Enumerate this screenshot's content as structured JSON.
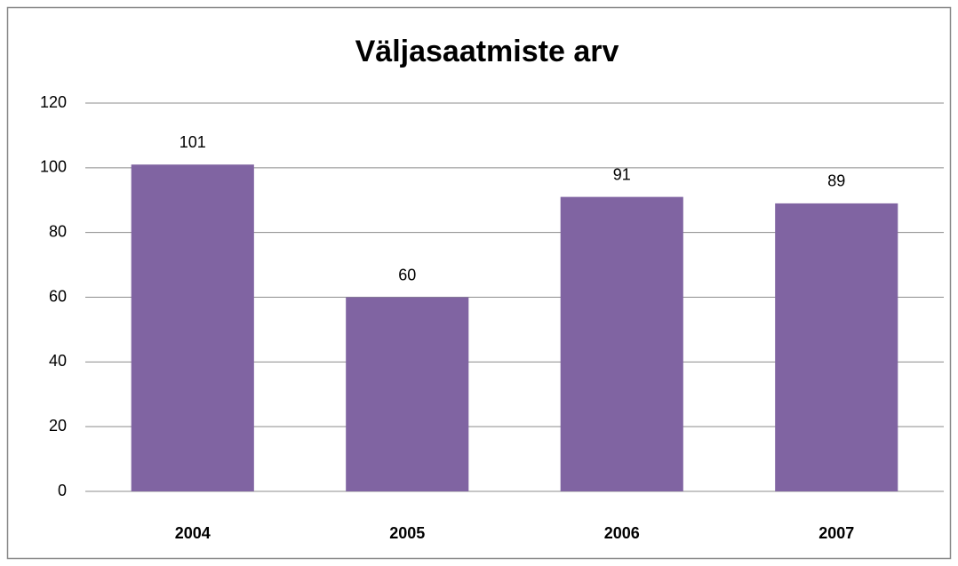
{
  "chart_data": {
    "type": "bar",
    "title": "Väljasaatmiste arv",
    "categories": [
      "2004",
      "2005",
      "2006",
      "2007"
    ],
    "values": [
      101,
      60,
      91,
      89
    ],
    "color": "#8064a2",
    "ylim": [
      0,
      120
    ],
    "yticks": [
      0,
      20,
      40,
      60,
      80,
      100,
      120
    ],
    "grid": true
  }
}
